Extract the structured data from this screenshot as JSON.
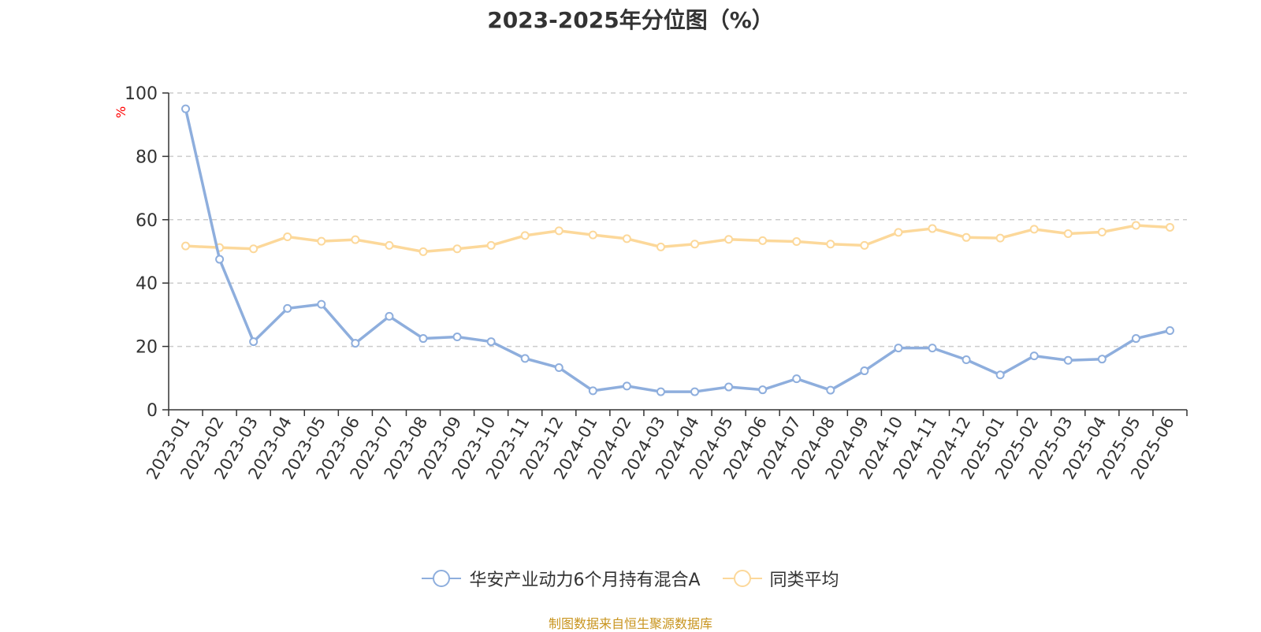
{
  "title": "2023-2025年分位图（%）",
  "source": "制图数据来自恒生聚源数据库",
  "colors": {
    "series1": "#8eaedd",
    "series2": "#fcd89a",
    "ylabel": "#ff0000",
    "grid": "#cccccc"
  },
  "chart_data": {
    "type": "line",
    "title": "2023-2025年分位图（%）",
    "ylabel": "%",
    "xlabel": "",
    "ylim": [
      0,
      100
    ],
    "yticks": [
      0,
      20,
      40,
      60,
      80,
      100
    ],
    "grid": "horizontal-dashed",
    "legend_position": "bottom",
    "categories": [
      "2023-01",
      "2023-02",
      "2023-03",
      "2023-04",
      "2023-05",
      "2023-06",
      "2023-07",
      "2023-08",
      "2023-09",
      "2023-10",
      "2023-11",
      "2023-12",
      "2024-01",
      "2024-02",
      "2024-03",
      "2024-04",
      "2024-05",
      "2024-06",
      "2024-07",
      "2024-08",
      "2024-09",
      "2024-10",
      "2024-11",
      "2024-12",
      "2025-01",
      "2025-02",
      "2025-03",
      "2025-04",
      "2025-05",
      "2025-06"
    ],
    "series": [
      {
        "name": "华安产业动力6个月持有混合A",
        "values": [
          95,
          47.5,
          21.5,
          32,
          33.3,
          21,
          29.5,
          22.5,
          23,
          21.5,
          16.2,
          13.3,
          6,
          7.5,
          5.7,
          5.7,
          7.2,
          6.3,
          9.8,
          6.2,
          12.3,
          19.5,
          19.5,
          15.8,
          11,
          17,
          15.6,
          16,
          22.5,
          25
        ]
      },
      {
        "name": "同类平均",
        "values": [
          51.7,
          51.2,
          50.8,
          54.6,
          53.2,
          53.7,
          51.9,
          49.9,
          50.8,
          51.9,
          55,
          56.5,
          55.2,
          54,
          51.4,
          52.3,
          53.8,
          53.4,
          53.1,
          52.3,
          51.9,
          56,
          57.2,
          54.4,
          54.2,
          57,
          55.6,
          56.1,
          58.2,
          57.6
        ]
      }
    ]
  }
}
